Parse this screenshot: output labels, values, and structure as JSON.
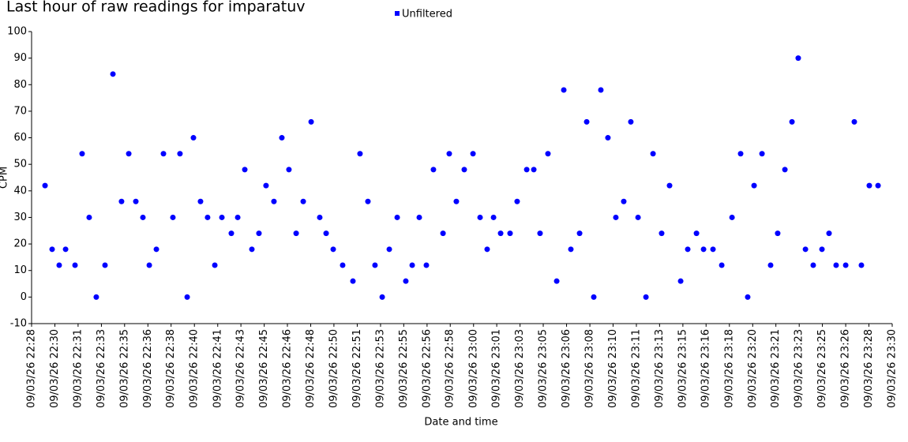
{
  "chart_data": {
    "type": "scatter",
    "title": "Last hour of raw readings for imparatuv",
    "x_label": "Date and time",
    "y_label": "CPM",
    "xlim": [
      1348,
      1410
    ],
    "ylim": [
      -10,
      100
    ],
    "yticks": [
      -10,
      0,
      10,
      20,
      30,
      40,
      50,
      60,
      70,
      80,
      90,
      100
    ],
    "xticks": [
      {
        "value": 1348,
        "label": "09/03/26 22:28"
      },
      {
        "value": 1349.68,
        "label": "09/03/26 22:30"
      },
      {
        "value": 1351.35,
        "label": "09/03/26 22:31"
      },
      {
        "value": 1353.03,
        "label": "09/03/26 22:33"
      },
      {
        "value": 1354.7,
        "label": "09/03/26 22:35"
      },
      {
        "value": 1356.38,
        "label": "09/03/26 22:36"
      },
      {
        "value": 1358.05,
        "label": "09/03/26 22:38"
      },
      {
        "value": 1359.73,
        "label": "09/03/26 22:40"
      },
      {
        "value": 1361.41,
        "label": "09/03/26 22:41"
      },
      {
        "value": 1363.08,
        "label": "09/03/26 22:43"
      },
      {
        "value": 1364.76,
        "label": "09/03/26 22:45"
      },
      {
        "value": 1366.43,
        "label": "09/03/26 22:46"
      },
      {
        "value": 1368.11,
        "label": "09/03/26 22:48"
      },
      {
        "value": 1369.78,
        "label": "09/03/26 22:50"
      },
      {
        "value": 1371.46,
        "label": "09/03/26 22:51"
      },
      {
        "value": 1373.14,
        "label": "09/03/26 22:53"
      },
      {
        "value": 1374.81,
        "label": "09/03/26 22:55"
      },
      {
        "value": 1376.49,
        "label": "09/03/26 22:56"
      },
      {
        "value": 1378.16,
        "label": "09/03/26 22:58"
      },
      {
        "value": 1379.84,
        "label": "09/03/26 23:00"
      },
      {
        "value": 1381.51,
        "label": "09/03/26 23:01"
      },
      {
        "value": 1383.19,
        "label": "09/03/26 23:03"
      },
      {
        "value": 1384.86,
        "label": "09/03/26 23:05"
      },
      {
        "value": 1386.54,
        "label": "09/03/26 23:06"
      },
      {
        "value": 1388.22,
        "label": "09/03/26 23:08"
      },
      {
        "value": 1389.89,
        "label": "09/03/26 23:10"
      },
      {
        "value": 1391.57,
        "label": "09/03/26 23:11"
      },
      {
        "value": 1393.24,
        "label": "09/03/26 23:13"
      },
      {
        "value": 1394.92,
        "label": "09/03/26 23:15"
      },
      {
        "value": 1396.59,
        "label": "09/03/26 23:16"
      },
      {
        "value": 1398.27,
        "label": "09/03/26 23:18"
      },
      {
        "value": 1399.95,
        "label": "09/03/26 23:20"
      },
      {
        "value": 1401.62,
        "label": "09/03/26 23:21"
      },
      {
        "value": 1403.3,
        "label": "09/03/26 23:23"
      },
      {
        "value": 1404.97,
        "label": "09/03/26 23:25"
      },
      {
        "value": 1406.65,
        "label": "09/03/26 23:26"
      },
      {
        "value": 1408.32,
        "label": "09/03/26 23:28"
      },
      {
        "value": 1410,
        "label": "09/03/26 23:30"
      }
    ],
    "x": [
      1348.97,
      1349.48,
      1349.99,
      1350.45,
      1351.13,
      1351.64,
      1352.15,
      1352.66,
      1353.29,
      1353.86,
      1354.48,
      1355.0,
      1355.51,
      1356.02,
      1356.48,
      1356.99,
      1357.5,
      1358.18,
      1358.69,
      1359.21,
      1359.66,
      1360.17,
      1360.68,
      1361.2,
      1361.71,
      1362.39,
      1362.85,
      1363.36,
      1363.87,
      1364.38,
      1364.89,
      1365.46,
      1366.03,
      1366.54,
      1367.06,
      1367.57,
      1368.14,
      1368.76,
      1369.22,
      1369.73,
      1370.41,
      1371.15,
      1371.66,
      1372.23,
      1372.74,
      1373.26,
      1373.77,
      1374.34,
      1374.96,
      1375.42,
      1375.93,
      1376.44,
      1376.95,
      1377.64,
      1378.09,
      1378.6,
      1379.17,
      1379.8,
      1380.31,
      1380.82,
      1381.28,
      1381.79,
      1382.47,
      1382.98,
      1383.67,
      1384.18,
      1384.63,
      1385.2,
      1385.83,
      1386.34,
      1386.85,
      1387.48,
      1387.99,
      1388.5,
      1389.01,
      1389.52,
      1390.09,
      1390.66,
      1391.17,
      1391.69,
      1392.26,
      1392.77,
      1393.39,
      1393.96,
      1394.76,
      1395.27,
      1395.9,
      1396.41,
      1397.09,
      1397.72,
      1398.46,
      1399.08,
      1399.59,
      1400.05,
      1400.62,
      1401.24,
      1401.75,
      1402.27,
      1402.78,
      1403.23,
      1403.75,
      1404.31,
      1404.94,
      1405.45,
      1405.96,
      1406.65,
      1407.27,
      1407.78,
      1408.35,
      1408.98
    ],
    "series": [
      {
        "name": "Unfiltered",
        "color": "#0000ff",
        "values": [
          42,
          18,
          12,
          18,
          12,
          54,
          30,
          0,
          12,
          84,
          36,
          54,
          36,
          30,
          12,
          18,
          54,
          30,
          54,
          0,
          60,
          36,
          30,
          12,
          30,
          24,
          30,
          48,
          18,
          24,
          42,
          36,
          60,
          48,
          24,
          36,
          66,
          30,
          24,
          18,
          12,
          6,
          54,
          36,
          12,
          0,
          18,
          30,
          6,
          12,
          30,
          12,
          48,
          24,
          54,
          36,
          48,
          54,
          30,
          18,
          30,
          24,
          24,
          36,
          48,
          48,
          24,
          54,
          6,
          78,
          18,
          24,
          66,
          0,
          78,
          60,
          30,
          36,
          66,
          30,
          0,
          54,
          24,
          42,
          6,
          18,
          24,
          18,
          18,
          12,
          30,
          54,
          0,
          42,
          54,
          12,
          24,
          48,
          66,
          90,
          18,
          12,
          18,
          24,
          12,
          12,
          66,
          12,
          42,
          42
        ]
      }
    ]
  }
}
